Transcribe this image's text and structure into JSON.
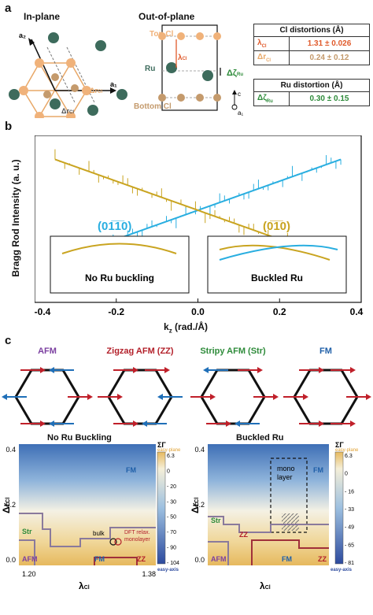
{
  "panels": {
    "a": "a",
    "b": "b",
    "c": "c"
  },
  "panel_a": {
    "in_plane_title": "In-plane",
    "out_of_plane_title": "Out-of-plane",
    "axis_a2": "a₂",
    "axis_a1": "a₁",
    "delta_r_label": "Δr",
    "delta_r_sub": "Cl",
    "top_cl": "Top Cl",
    "bottom_cl": "Bottom Cl",
    "ru": "Ru",
    "lambda_label": "λ",
    "lambda_sub": "Cl",
    "delta_zeta_label": "Δζ",
    "delta_zeta_sub": "Ru",
    "axis_c": "c",
    "axis_a1_oop": "a₁",
    "cl_table": {
      "title": "Cl distortions (Å)",
      "rows": [
        {
          "sym": "λ",
          "sub": "Cl",
          "value": "1.31 ± 0.026"
        },
        {
          "sym": "Δr",
          "sub": "Cl",
          "value": "0.24 ± 0.12"
        }
      ]
    },
    "ru_table": {
      "title": "Ru distortion (Å)",
      "rows": [
        {
          "sym": "Δζ",
          "sub": "Ru",
          "value": "0.30 ± 0.15"
        }
      ]
    },
    "colors": {
      "cl": "#f0b27a",
      "cl_bottom": "#c49a6c",
      "ru": "#3d6b5c",
      "lambda": "#e05a2b",
      "green": "#2e8b3a"
    }
  },
  "chart_data": {
    "type": "scatter",
    "xlabel": "k",
    "xlabel_sub": "z",
    "xlabel_unit": " (rad./Å)",
    "ylabel": "Bragg Rod Intensity (a. u.)",
    "xlim": [
      -0.4,
      0.4
    ],
    "xticks": [
      "-0.4",
      "-0.2",
      "0.0",
      "0.2",
      "0.4"
    ],
    "series": [
      {
        "name": "(01̅1̅0)",
        "color": "#29aee0",
        "fit": [
          [
            -0.35,
            0.12
          ],
          [
            0.35,
            0.88
          ]
        ]
      },
      {
        "name": "(01̅̅1̅0)",
        "color": "#c9a420",
        "fit": [
          [
            -0.35,
            0.88
          ],
          [
            0.35,
            0.12
          ]
        ]
      }
    ],
    "legend_left": "(01̅1̅0)",
    "legend_right": "(0̅1̅0)",
    "inset_left": "No Ru buckling",
    "inset_right": "Buckled Ru"
  },
  "panel_c": {
    "orders": [
      {
        "name": "AFM",
        "color": "#7b3fa0"
      },
      {
        "name": "Zigzag AFM (ZZ)",
        "color": "#b3202a"
      },
      {
        "name": "Stripy AFM (Str)",
        "color": "#2e8b3a"
      },
      {
        "name": "FM",
        "color": "#1f5fa8"
      }
    ],
    "map_left": {
      "title": "No Ru Buckling",
      "ylabel": "Δr",
      "ylabel_sub": "Cl",
      "xlabel": "λ",
      "xlabel_sub": "Cl",
      "xticks": [
        "1.20",
        "1.38"
      ],
      "yticks": [
        "0.4",
        "0.2",
        "0.0"
      ],
      "regions": {
        "fm": "FM",
        "fm2": "FM",
        "str": "Str",
        "afm": "AFM",
        "zz": "ZZ"
      },
      "markers": {
        "bulk": "bulk",
        "dft": "DFT relax.",
        "mono": "monolayer"
      },
      "colorbar": {
        "title": "ΣΓ",
        "top_label": "easy-plane",
        "bottom_label": "easy-axis",
        "ticks": [
          "6.3",
          "0",
          "- 20",
          "- 30",
          "- 50",
          "- 70",
          "- 90",
          "- 104"
        ]
      }
    },
    "map_right": {
      "title": "Buckled Ru",
      "ylabel": "Δr",
      "ylabel_sub": "Cl",
      "xlabel": "λ",
      "xlabel_sub": "Cl",
      "yticks": [
        "0.4",
        "0.2",
        "0.0"
      ],
      "regions": {
        "fm": "FM",
        "fm2": "FM",
        "str": "Str",
        "afm": "AFM",
        "zz": "ZZ",
        "zz2": "ZZ"
      },
      "mono_box": [
        "mono",
        "layer"
      ],
      "colorbar": {
        "title": "ΣΓ",
        "top_label": "easy-plane",
        "bottom_label": "easy-axis",
        "ticks": [
          "6.3",
          "0",
          "- 16",
          "- 33",
          "- 49",
          "- 65",
          "- 81"
        ]
      }
    }
  }
}
